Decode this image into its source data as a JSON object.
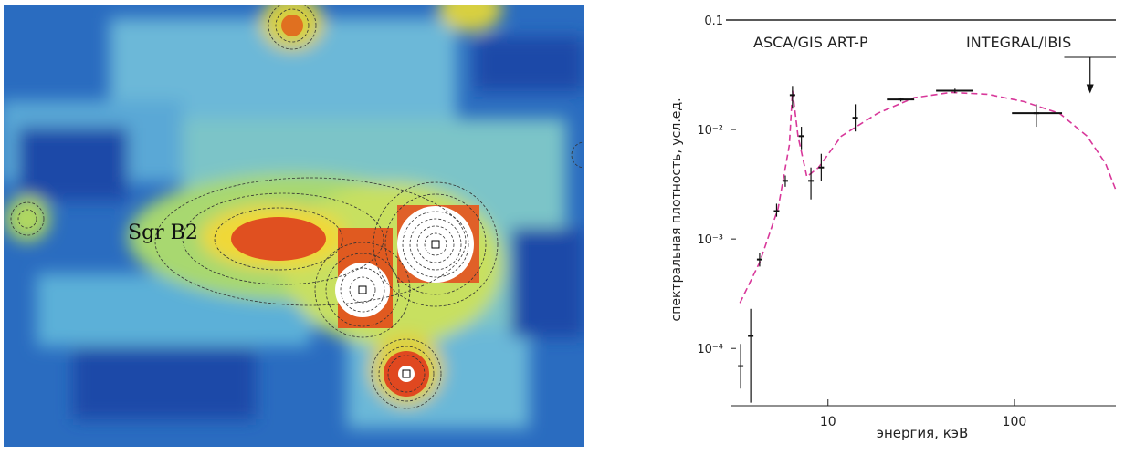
{
  "image": {
    "label": "Sgr B2"
  },
  "chart_data": {
    "type": "line",
    "xlabel": "энергия, кэВ",
    "ylabel": "спектральная плотность, усл.ед.",
    "annotations": [
      "ASCA/GIS  ART-P",
      "INTEGRAL/IBIS"
    ],
    "xscale": "log",
    "yscale": "log",
    "xlim": [
      3,
      350
    ],
    "ylim": [
      3e-05,
      0.1
    ],
    "xticks": [
      10,
      100
    ],
    "yticks": [
      0.1,
      {
        "value": 0.01,
        "label": "10⁻²"
      },
      {
        "value": 0.001,
        "label": "10⁻³"
      },
      {
        "value": 0.0001,
        "label": "10⁻⁴"
      }
    ],
    "series": [
      {
        "color": "#d8389a",
        "x": [
          3.37,
          4.3,
          5.4,
          6.2,
          6.45,
          6.9,
          7.7,
          8.9,
          11.8,
          18.5,
          29,
          45.6,
          71.5,
          112,
          175,
          245,
          308,
          350
        ],
        "values": [
          0.00026,
          0.00061,
          0.0019,
          0.0072,
          0.0226,
          0.0087,
          0.0037,
          0.0045,
          0.0087,
          0.0141,
          0.0195,
          0.0218,
          0.021,
          0.018,
          0.014,
          0.0087,
          0.0049,
          0.0028
        ]
      }
    ],
    "points": {
      "color": "#111111",
      "x": [
        3.4,
        3.85,
        4.3,
        5.3,
        5.9,
        6.45,
        7.2,
        8.1,
        9.2,
        14,
        24.6,
        48,
        131
      ],
      "values": [
        6.9e-05,
        0.00013,
        0.00065,
        0.0018,
        0.0034,
        0.0206,
        0.0087,
        0.0034,
        0.0045,
        0.0128,
        0.0188,
        0.0226,
        0.0141
      ],
      "lower": [
        4.3e-05,
        3.2e-05,
        0.00056,
        0.0016,
        0.003,
        0.0155,
        0.0066,
        0.0023,
        0.0034,
        0.0096,
        0.018,
        0.0215,
        0.0106
      ],
      "upper": [
        0.00011,
        0.00023,
        0.00074,
        0.0021,
        0.0038,
        0.025,
        0.0106,
        0.0045,
        0.006,
        0.017,
        0.0196,
        0.0236,
        0.017
      ],
      "x_lower": [
        null,
        null,
        null,
        null,
        null,
        null,
        null,
        null,
        null,
        null,
        20.7,
        38,
        97
      ],
      "x_upper": [
        null,
        null,
        null,
        null,
        null,
        null,
        null,
        null,
        null,
        null,
        29,
        60,
        180
      ]
    },
    "upper_limit": {
      "x_lower": 185,
      "x_upper": 350,
      "value": 0.046
    }
  }
}
